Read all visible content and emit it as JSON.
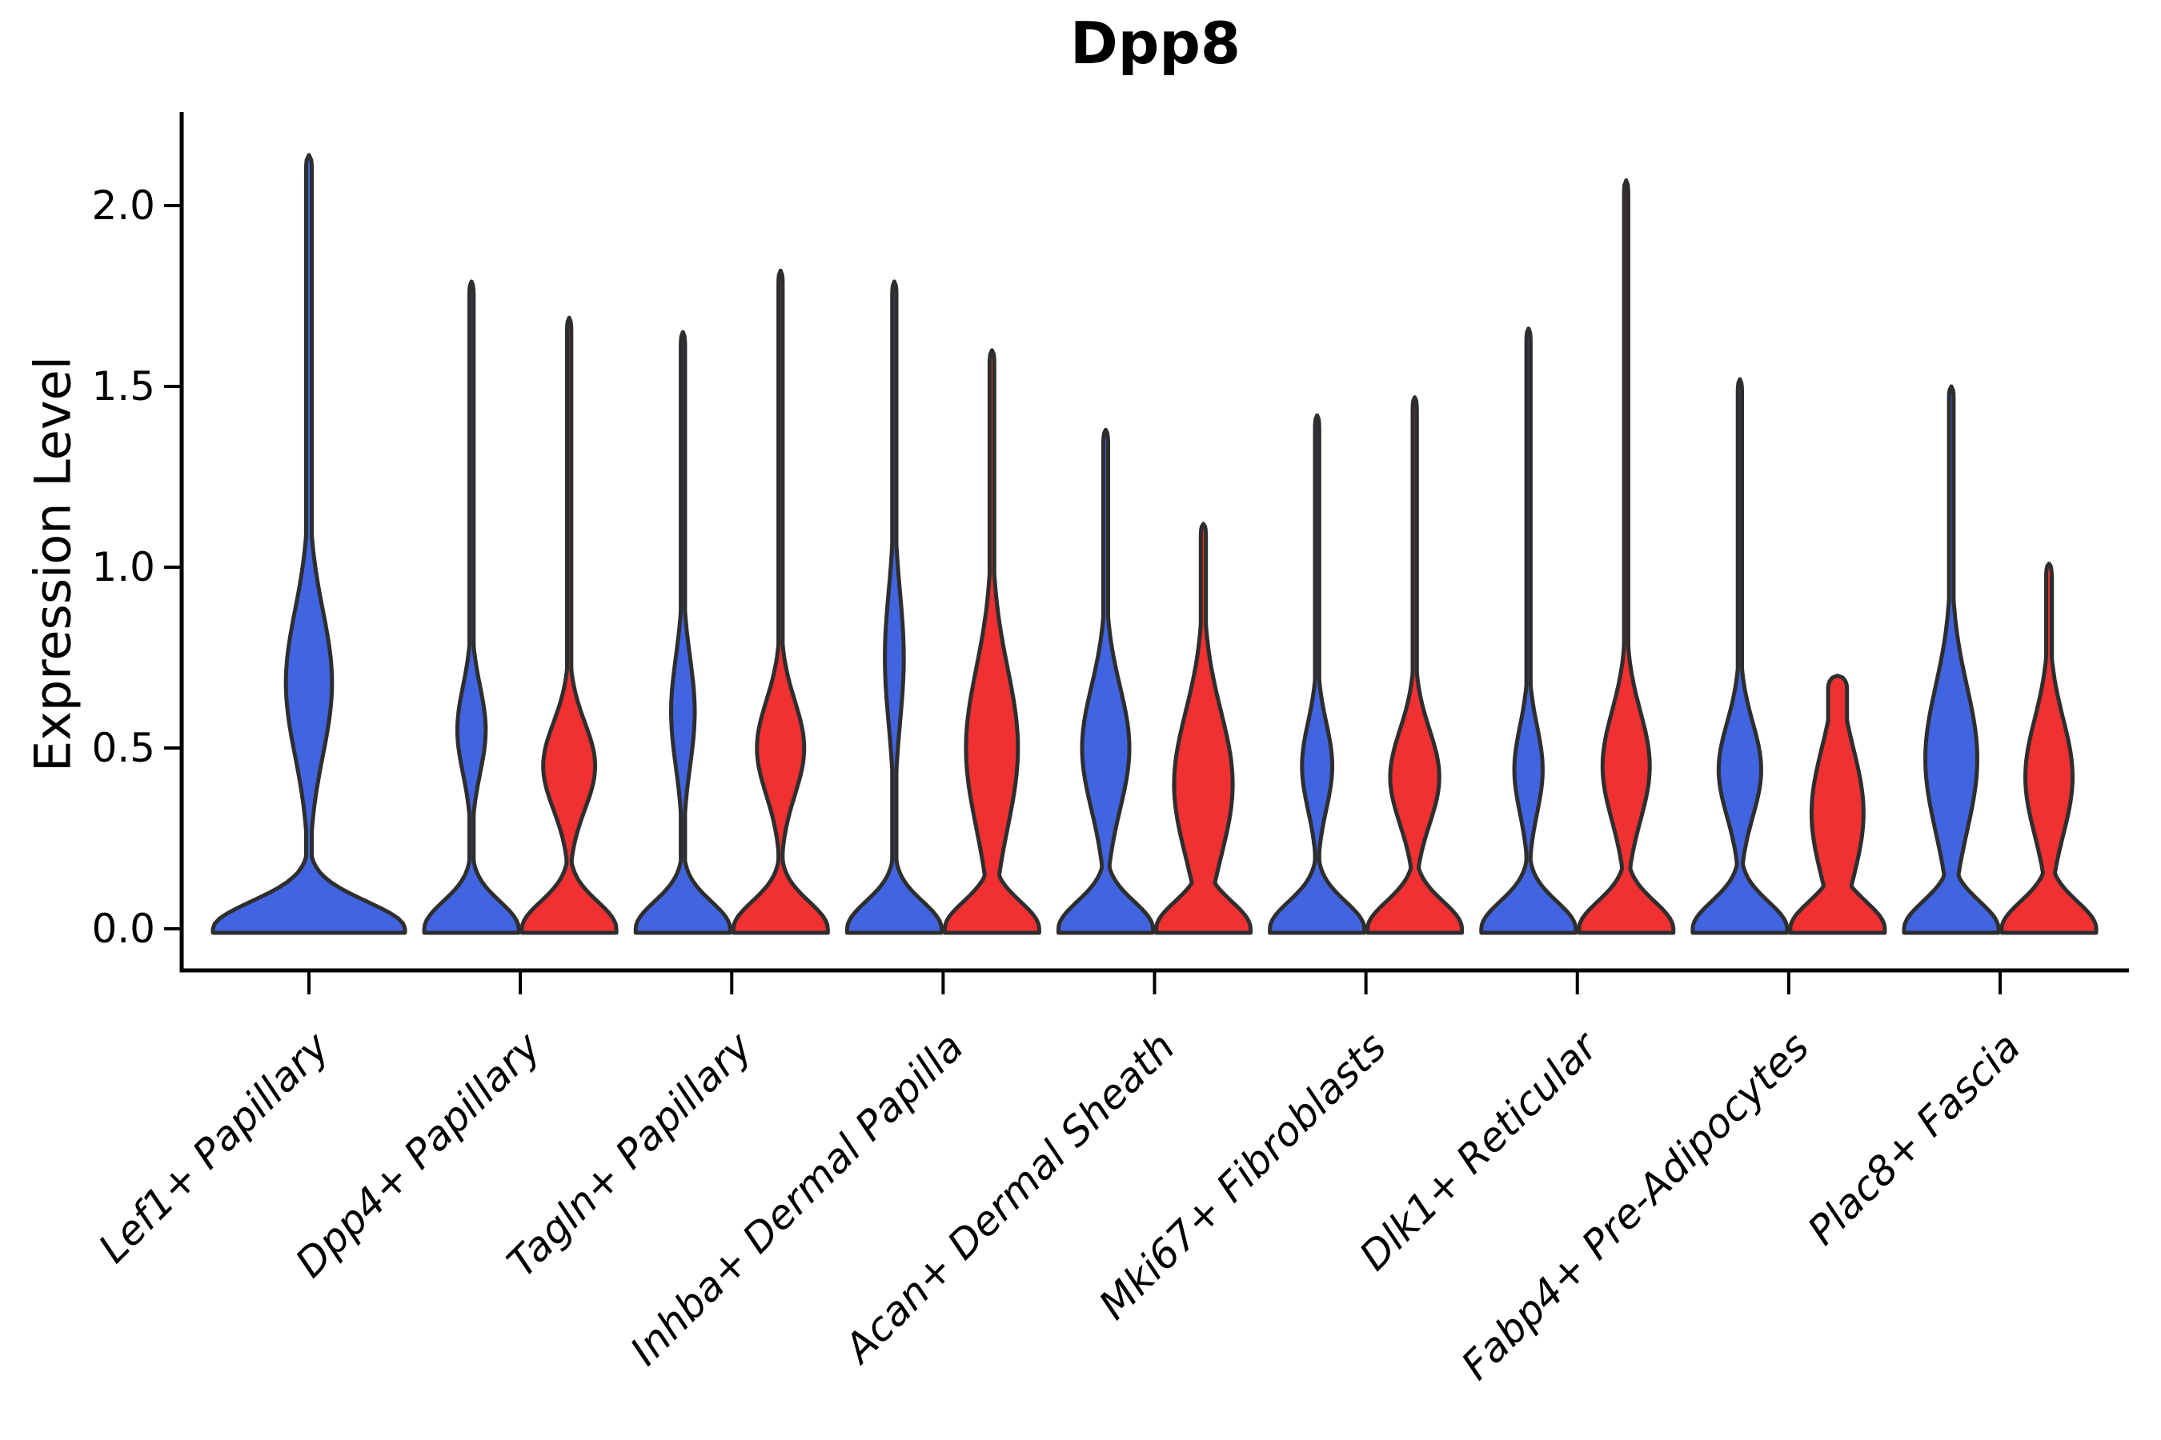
{
  "chart_data": {
    "type": "violin",
    "title": "Dpp8",
    "xlabel": "",
    "ylabel": "Expression Level",
    "ylim": [
      -0.11,
      2.25
    ],
    "yticks": [
      0.0,
      0.5,
      1.0,
      1.5,
      2.0
    ],
    "ytick_labels": [
      "0.0",
      "0.5",
      "1.0",
      "1.5",
      "2.0"
    ],
    "grid": false,
    "legend": false,
    "groups": [
      "blue",
      "red"
    ],
    "palette": {
      "blue": "#4164E1",
      "red": "#F03031",
      "outline": "#2E2E2E"
    },
    "kde_shape": {
      "base_sigma": 0.075,
      "tip_radius": 0.035
    },
    "categories": [
      {
        "label": "Lef1+ Papillary",
        "violins": [
          {
            "group": "blue",
            "span": "full",
            "max": 2.14,
            "bulge_center": 0.68,
            "bulge_sigma": 0.2,
            "bulge_amp": 0.24,
            "tail_width": 0.03
          }
        ]
      },
      {
        "label": "Dpp4+ Papillary",
        "violins": [
          {
            "group": "blue",
            "span": "half",
            "max": 1.79,
            "bulge_center": 0.55,
            "bulge_sigma": 0.12,
            "bulge_amp": 0.3,
            "tail_width": 0.045
          },
          {
            "group": "red",
            "span": "half",
            "max": 1.69,
            "bulge_center": 0.45,
            "bulge_sigma": 0.12,
            "bulge_amp": 0.55,
            "tail_width": 0.045
          }
        ]
      },
      {
        "label": "Tagln+ Papillary",
        "violins": [
          {
            "group": "blue",
            "span": "half",
            "max": 1.65,
            "bulge_center": 0.6,
            "bulge_sigma": 0.15,
            "bulge_amp": 0.25,
            "tail_width": 0.045
          },
          {
            "group": "red",
            "span": "half",
            "max": 1.82,
            "bulge_center": 0.5,
            "bulge_sigma": 0.13,
            "bulge_amp": 0.5,
            "tail_width": 0.045
          }
        ]
      },
      {
        "label": "Inhba+ Dermal Papilla",
        "violins": [
          {
            "group": "blue",
            "span": "half",
            "max": 1.79,
            "bulge_center": 0.75,
            "bulge_sigma": 0.18,
            "bulge_amp": 0.2,
            "tail_width": 0.045
          },
          {
            "group": "red",
            "span": "half",
            "max": 1.6,
            "bulge_center": 0.5,
            "bulge_sigma": 0.22,
            "bulge_amp": 0.55,
            "tail_width": 0.05
          }
        ]
      },
      {
        "label": "Acan+ Dermal Sheath",
        "violins": [
          {
            "group": "blue",
            "span": "half",
            "max": 1.38,
            "bulge_center": 0.5,
            "bulge_sigma": 0.17,
            "bulge_amp": 0.5,
            "tail_width": 0.05
          },
          {
            "group": "red",
            "span": "half",
            "max": 1.12,
            "bulge_center": 0.4,
            "bulge_sigma": 0.2,
            "bulge_amp": 0.62,
            "tail_width": 0.055
          }
        ]
      },
      {
        "label": "Mki67+ Fibroblasts",
        "violins": [
          {
            "group": "blue",
            "span": "half",
            "max": 1.42,
            "bulge_center": 0.45,
            "bulge_sigma": 0.12,
            "bulge_amp": 0.32,
            "tail_width": 0.045
          },
          {
            "group": "red",
            "span": "half",
            "max": 1.47,
            "bulge_center": 0.42,
            "bulge_sigma": 0.13,
            "bulge_amp": 0.52,
            "tail_width": 0.045
          }
        ]
      },
      {
        "label": "Dlk1+ Reticular",
        "violins": [
          {
            "group": "blue",
            "span": "half",
            "max": 1.66,
            "bulge_center": 0.44,
            "bulge_sigma": 0.12,
            "bulge_amp": 0.3,
            "tail_width": 0.045
          },
          {
            "group": "red",
            "span": "half",
            "max": 2.07,
            "bulge_center": 0.45,
            "bulge_sigma": 0.15,
            "bulge_amp": 0.5,
            "tail_width": 0.045
          }
        ]
      },
      {
        "label": "Fabp4+ Pre-Adipocytes",
        "violins": [
          {
            "group": "blue",
            "span": "half",
            "max": 1.52,
            "bulge_center": 0.44,
            "bulge_sigma": 0.13,
            "bulge_amp": 0.45,
            "tail_width": 0.045
          },
          {
            "group": "red",
            "span": "half",
            "max": 0.7,
            "bulge_center": 0.32,
            "bulge_sigma": 0.18,
            "bulge_amp": 0.55,
            "tail_width": 0.2
          }
        ]
      },
      {
        "label": "Plac8+ Fascia",
        "violins": [
          {
            "group": "blue",
            "span": "half",
            "max": 1.5,
            "bulge_center": 0.47,
            "bulge_sigma": 0.2,
            "bulge_amp": 0.55,
            "tail_width": 0.05
          },
          {
            "group": "red",
            "span": "half",
            "max": 1.01,
            "bulge_center": 0.42,
            "bulge_sigma": 0.16,
            "bulge_amp": 0.5,
            "tail_width": 0.06
          }
        ]
      }
    ]
  }
}
